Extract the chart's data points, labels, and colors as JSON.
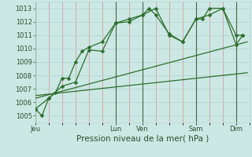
{
  "xlabel": "Pression niveau de la mer( hPa )",
  "ylim": [
    1004.5,
    1013.5
  ],
  "xlim": [
    0,
    96
  ],
  "yticks": [
    1005,
    1006,
    1007,
    1008,
    1009,
    1010,
    1011,
    1012,
    1013
  ],
  "day_ticks_x": [
    0,
    36,
    48,
    72,
    90
  ],
  "day_labels": [
    "Jeu",
    "Lun",
    "Ven",
    "Sam",
    "Dim"
  ],
  "bg_color": "#cce8e4",
  "grid_color_h": "#b8d8d4",
  "grid_color_v": "#d0a0a0",
  "vline_color": "#446644",
  "line_color": "#2d6e2d",
  "series1_x": [
    0,
    3,
    6,
    9,
    12,
    15,
    18,
    21,
    24,
    30,
    36,
    42,
    48,
    51,
    54,
    60,
    66,
    72,
    75,
    78,
    84,
    90,
    93
  ],
  "series1_y": [
    1005.5,
    1005.0,
    1006.3,
    1006.7,
    1007.8,
    1007.8,
    1009.0,
    1009.8,
    1010.1,
    1010.5,
    1011.9,
    1012.2,
    1012.5,
    1013.0,
    1012.5,
    1011.1,
    1010.5,
    1012.2,
    1012.2,
    1013.0,
    1013.0,
    1011.0,
    1011.0
  ],
  "series2_x": [
    0,
    6,
    12,
    18,
    24,
    30,
    36,
    42,
    48,
    54,
    60,
    66,
    72,
    78,
    84,
    90,
    93
  ],
  "series2_y": [
    1005.5,
    1006.3,
    1007.2,
    1007.5,
    1009.9,
    1009.8,
    1011.9,
    1012.0,
    1012.5,
    1013.0,
    1011.0,
    1010.5,
    1012.2,
    1012.5,
    1013.0,
    1010.3,
    1011.0
  ],
  "trend1_x": [
    0,
    95
  ],
  "trend1_y": [
    1006.3,
    1010.5
  ],
  "trend2_x": [
    0,
    95
  ],
  "trend2_y": [
    1006.5,
    1008.2
  ],
  "markersize": 2.5,
  "linewidth": 0.9,
  "fontsize_tick": 6,
  "fontsize_xlabel": 7.5
}
